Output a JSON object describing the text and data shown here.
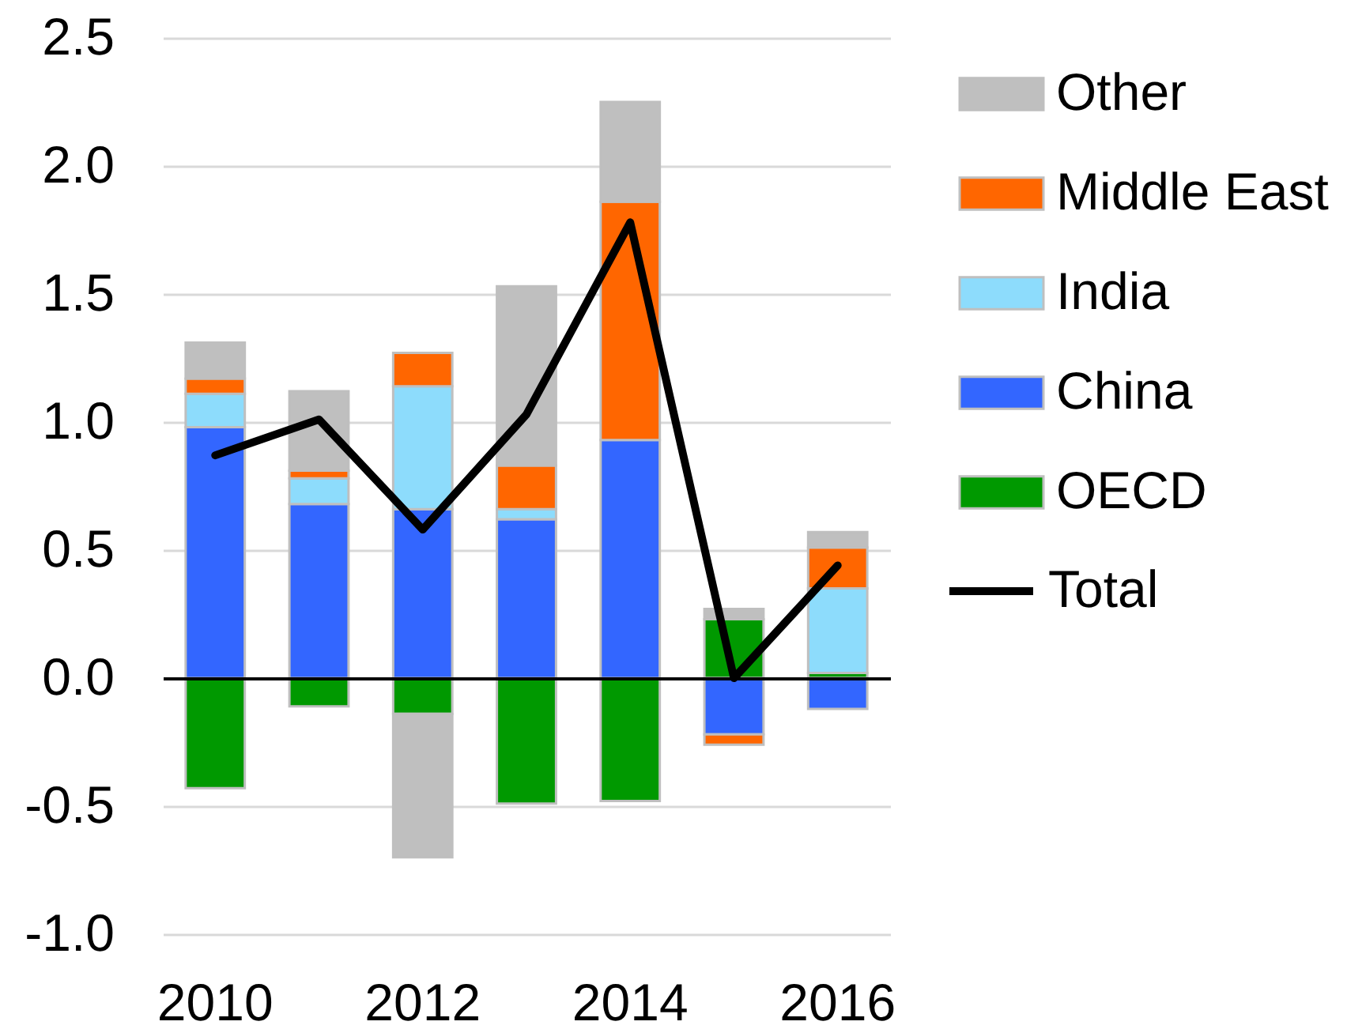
{
  "chart_data": {
    "type": "bar",
    "stacked": true,
    "categories": [
      "2010",
      null,
      "2012",
      null,
      "2014",
      null,
      "2016"
    ],
    "series": [
      {
        "name": "OECD",
        "color": "#009900",
        "values": [
          -0.43,
          -0.11,
          -0.14,
          -0.49,
          -0.48,
          0.23,
          0.02
        ]
      },
      {
        "name": "China",
        "color": "#3366ff",
        "values": [
          0.98,
          0.68,
          0.66,
          0.62,
          0.93,
          -0.22,
          -0.12
        ]
      },
      {
        "name": "India",
        "color": "#8ddcfc",
        "values": [
          0.13,
          0.1,
          0.48,
          0.04,
          null,
          null,
          0.33
        ]
      },
      {
        "name": "Middle East",
        "color": "#ff6600",
        "values": [
          0.06,
          0.03,
          0.13,
          0.17,
          0.93,
          -0.04,
          0.16
        ]
      },
      {
        "name": "Other",
        "color": "#bfbfbf",
        "values": [
          0.14,
          0.31,
          -0.56,
          0.7,
          0.39,
          0.04,
          0.06
        ]
      },
      {
        "name": "Total",
        "type": "line",
        "color": "#000000",
        "values": [
          0.87,
          1.01,
          0.58,
          1.03,
          1.78,
          0.0,
          0.44
        ]
      }
    ],
    "ylim": [
      -1.0,
      2.5
    ],
    "yticks": [
      {
        "value": -1,
        "label": "-1.0"
      },
      -0.5,
      {
        "value": 0,
        "label": "0.0"
      },
      0.5,
      {
        "value": 1,
        "label": "1.0"
      },
      1.5,
      {
        "value": 2,
        "label": "2.0"
      },
      2.5
    ],
    "grid": "y",
    "legend": "right"
  }
}
